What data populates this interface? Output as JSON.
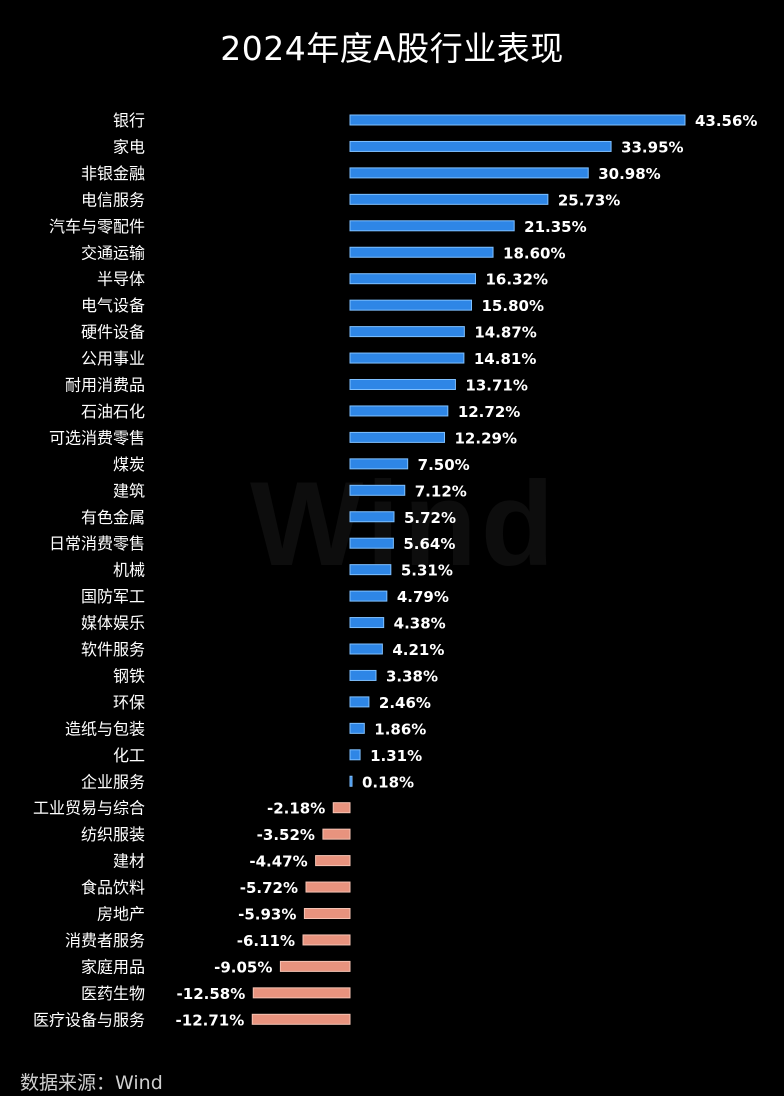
{
  "colors": {
    "positive": "#2e86e6",
    "positive_edge": "#7fc0ff",
    "negative": "#e8937e",
    "negative_edge": "#f6c3b4",
    "background": "#000000"
  },
  "watermark": "Wind",
  "source": "数据来源：Wind",
  "chart_data": {
    "type": "bar",
    "orientation": "horizontal",
    "title": "2024年度A股行业表现",
    "unit": "%",
    "categories": [
      "银行",
      "家电",
      "非银金融",
      "电信服务",
      "汽车与零配件",
      "交通运输",
      "半导体",
      "电气设备",
      "硬件设备",
      "公用事业",
      "耐用消费品",
      "石油石化",
      "可选消费零售",
      "煤炭",
      "建筑",
      "有色金属",
      "日常消费零售",
      "机械",
      "国防军工",
      "媒体娱乐",
      "软件服务",
      "钢铁",
      "环保",
      "造纸与包装",
      "化工",
      "企业服务",
      "工业贸易与综合",
      "纺织服装",
      "建材",
      "食品饮料",
      "房地产",
      "消费者服务",
      "家庭用品",
      "医药生物",
      "医疗设备与服务"
    ],
    "values": [
      43.56,
      33.95,
      30.98,
      25.73,
      21.35,
      18.6,
      16.32,
      15.8,
      14.87,
      14.81,
      13.71,
      12.72,
      12.29,
      7.5,
      7.12,
      5.72,
      5.64,
      5.31,
      4.79,
      4.38,
      4.21,
      3.38,
      2.46,
      1.86,
      1.31,
      0.18,
      -2.18,
      -3.52,
      -4.47,
      -5.72,
      -5.93,
      -6.11,
      -9.05,
      -12.58,
      -12.71
    ],
    "value_labels": [
      "43.56%",
      "33.95%",
      "30.98%",
      "25.73%",
      "21.35%",
      "18.60%",
      "16.32%",
      "15.80%",
      "14.87%",
      "14.81%",
      "13.71%",
      "12.72%",
      "12.29%",
      "7.50%",
      "7.12%",
      "5.72%",
      "5.64%",
      "5.31%",
      "4.79%",
      "4.38%",
      "4.21%",
      "3.38%",
      "2.46%",
      "1.86%",
      "1.31%",
      "0.18%",
      "-2.18%",
      "-3.52%",
      "-4.47%",
      "-5.72%",
      "-5.93%",
      "-6.11%",
      "-9.05%",
      "-12.58%",
      "-12.71%"
    ],
    "grid": false,
    "legend": "none"
  }
}
